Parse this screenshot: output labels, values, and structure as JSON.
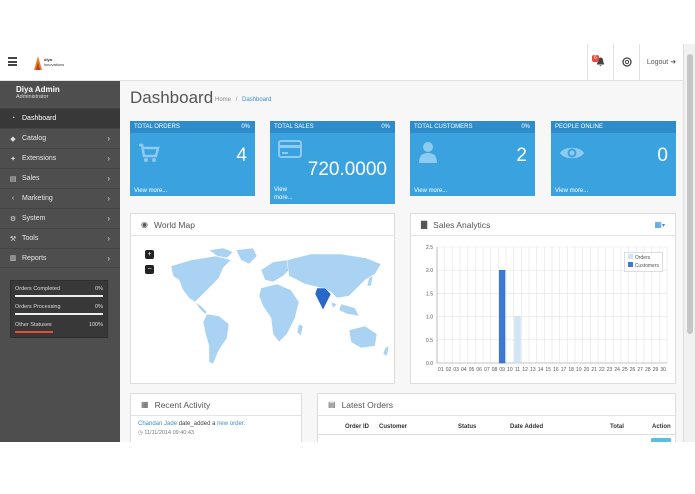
{
  "header": {
    "logo_text_1": "diya",
    "logo_text_2": "innovations",
    "notification_count": "6",
    "logout_label": "Logout"
  },
  "sidebar": {
    "user_name": "Diya Admin",
    "user_role": "Administrator",
    "items": [
      {
        "label": "Dashboard",
        "icon": "dashboard-icon"
      },
      {
        "label": "Catalog",
        "icon": "tag-icon"
      },
      {
        "label": "Extensions",
        "icon": "puzzle-icon"
      },
      {
        "label": "Sales",
        "icon": "cart-icon"
      },
      {
        "label": "Marketing",
        "icon": "share-icon"
      },
      {
        "label": "System",
        "icon": "cog-icon"
      },
      {
        "label": "Tools",
        "icon": "wrench-icon"
      },
      {
        "label": "Reports",
        "icon": "chart-icon"
      }
    ],
    "stats": [
      {
        "label": "Orders Completed",
        "percent": "0%",
        "fraction": 0
      },
      {
        "label": "Orders Processing",
        "percent": "0%",
        "fraction": 0
      },
      {
        "label": "Other Statuses",
        "percent": "100%",
        "fraction": 1
      }
    ]
  },
  "page": {
    "title": "Dashboard",
    "breadcrumb_home": "Home",
    "breadcrumb_sep": "/",
    "breadcrumb_current": "Dashboard"
  },
  "tiles": [
    {
      "title": "TOTAL ORDERS",
      "percent": "0%",
      "value": "4",
      "footer": "View more...",
      "icon": "cart-icon"
    },
    {
      "title": "TOTAL SALES",
      "percent": "0%",
      "value": "720.0000",
      "footer": "View more...",
      "icon": "credit-card-icon"
    },
    {
      "title": "TOTAL CUSTOMERS",
      "percent": "0%",
      "value": "2",
      "footer": "View more...",
      "icon": "user-icon"
    },
    {
      "title": "PEOPLE ONLINE",
      "percent": "",
      "value": "0",
      "footer": "View more...",
      "icon": "eye-icon"
    }
  ],
  "world_map": {
    "title": "World Map",
    "zoom_in": "+",
    "zoom_out": "−"
  },
  "analytics": {
    "title": "Sales Analytics",
    "legend_orders": "Orders",
    "legend_customers": "Customers",
    "colors": {
      "orders": "#cfe6f7",
      "customers": "#3a7ad5"
    }
  },
  "chart_data": {
    "type": "bar",
    "categories": [
      "01",
      "02",
      "03",
      "04",
      "05",
      "06",
      "07",
      "08",
      "09",
      "10",
      "11",
      "12",
      "13",
      "14",
      "15",
      "16",
      "17",
      "18",
      "19",
      "20",
      "21",
      "22",
      "23",
      "24",
      "25",
      "26",
      "27",
      "28",
      "29",
      "30"
    ],
    "series": [
      {
        "name": "Orders",
        "values": [
          0,
          0,
          0,
          0,
          0,
          0,
          0,
          0,
          0,
          0,
          1,
          0,
          0,
          0,
          0,
          0,
          0,
          0,
          0,
          0,
          0,
          0,
          0,
          0,
          0,
          0,
          0,
          0,
          0,
          0
        ]
      },
      {
        "name": "Customers",
        "values": [
          0,
          0,
          0,
          0,
          0,
          0,
          0,
          0,
          2,
          0,
          0,
          0,
          0,
          0,
          0,
          0,
          0,
          0,
          0,
          0,
          0,
          0,
          0,
          0,
          0,
          0,
          0,
          0,
          0,
          0
        ]
      }
    ],
    "yticks": [
      "0.0",
      "0.5",
      "1.0",
      "1.5",
      "2.0",
      "2.5"
    ],
    "ylim": [
      0,
      2.5
    ],
    "legend": "top-right"
  },
  "recent_activity": {
    "title": "Recent Activity",
    "user_link": "Chandan Jade",
    "text": "date_added a",
    "order_link": "new order.",
    "time": "11/11/2014 09:40:43"
  },
  "latest_orders": {
    "title": "Latest Orders",
    "columns": [
      "Order ID",
      "Customer",
      "Status",
      "Date Added",
      "Total",
      "Action"
    ]
  }
}
